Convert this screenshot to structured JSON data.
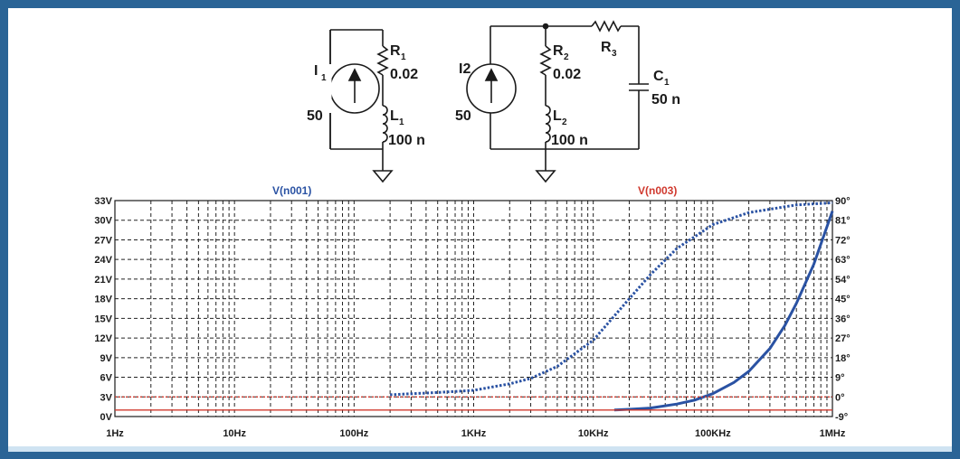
{
  "schematic": {
    "left": {
      "source_label": "I",
      "source_sub": "1",
      "source_value": "50",
      "resistor_label": "R",
      "resistor_sub": "1",
      "resistor_value": "0.02",
      "inductor_label": "L",
      "inductor_sub": "1",
      "inductor_value": "100 n"
    },
    "right": {
      "source_label": "I2",
      "source_value": "50",
      "resistor_label": "R",
      "resistor_sub": "2",
      "resistor_value": "0.02",
      "inductor_label": "L",
      "inductor_sub": "2",
      "inductor_value": "100 n",
      "resistor3_label": "R",
      "resistor3_sub": "3",
      "capacitor_label": "C",
      "capacitor_sub": "1",
      "capacitor_value": "50 n"
    }
  },
  "chart_data": {
    "type": "line",
    "x_scale": "log",
    "xlim": [
      1,
      1000000
    ],
    "x_ticks": [
      {
        "value": 1,
        "label": "1Hz"
      },
      {
        "value": 10,
        "label": "10Hz"
      },
      {
        "value": 100,
        "label": "100Hz"
      },
      {
        "value": 1000,
        "label": "1KHz"
      },
      {
        "value": 10000,
        "label": "10KHz"
      },
      {
        "value": 100000,
        "label": "100KHz"
      },
      {
        "value": 1000000,
        "label": "1MHz"
      }
    ],
    "ylim_left": [
      0,
      33
    ],
    "y_ticks_left": [
      "0V",
      "3V",
      "6V",
      "9V",
      "12V",
      "15V",
      "18V",
      "21V",
      "24V",
      "27V",
      "30V",
      "33V"
    ],
    "ylim_right": [
      -9,
      90
    ],
    "y_ticks_right": [
      "-9°",
      "0°",
      "9°",
      "18°",
      "27°",
      "36°",
      "45°",
      "54°",
      "63°",
      "72°",
      "81°",
      "90°"
    ],
    "grid": true,
    "colors": {
      "v_n001": "#2a52a3",
      "v_n003": "#d0392e"
    },
    "series": [
      {
        "name": "V(n001)",
        "axis": "left",
        "style": "solid",
        "x": [
          15000,
          20000,
          30000,
          50000,
          70000,
          100000,
          150000,
          200000,
          300000,
          400000,
          500000,
          700000,
          1000000
        ],
        "y": [
          1.0,
          1.1,
          1.3,
          1.9,
          2.5,
          3.5,
          5.2,
          6.9,
          10.4,
          13.9,
          17.3,
          23.3,
          31.4
        ]
      },
      {
        "name": "V(n001) phase",
        "axis": "right",
        "style": "dotted",
        "x": [
          200,
          500,
          1000,
          2000,
          3000,
          5000,
          10000,
          20000,
          30000,
          50000,
          100000,
          200000,
          500000,
          1000000
        ],
        "y": [
          1,
          2,
          3,
          6,
          8.5,
          14,
          26,
          45,
          56,
          68,
          79,
          84.5,
          88,
          89
        ]
      },
      {
        "name": "V(n003)",
        "axis": "left",
        "style": "solid",
        "x": [
          1,
          1000000
        ],
        "y": [
          1,
          1
        ]
      },
      {
        "name": "V(n003) phase",
        "axis": "right",
        "style": "dotted",
        "x": [
          1,
          1000000
        ],
        "y": [
          0,
          0
        ]
      }
    ],
    "trace_labels": {
      "v_n001": "V(n001)",
      "v_n003": "V(n003)"
    }
  }
}
